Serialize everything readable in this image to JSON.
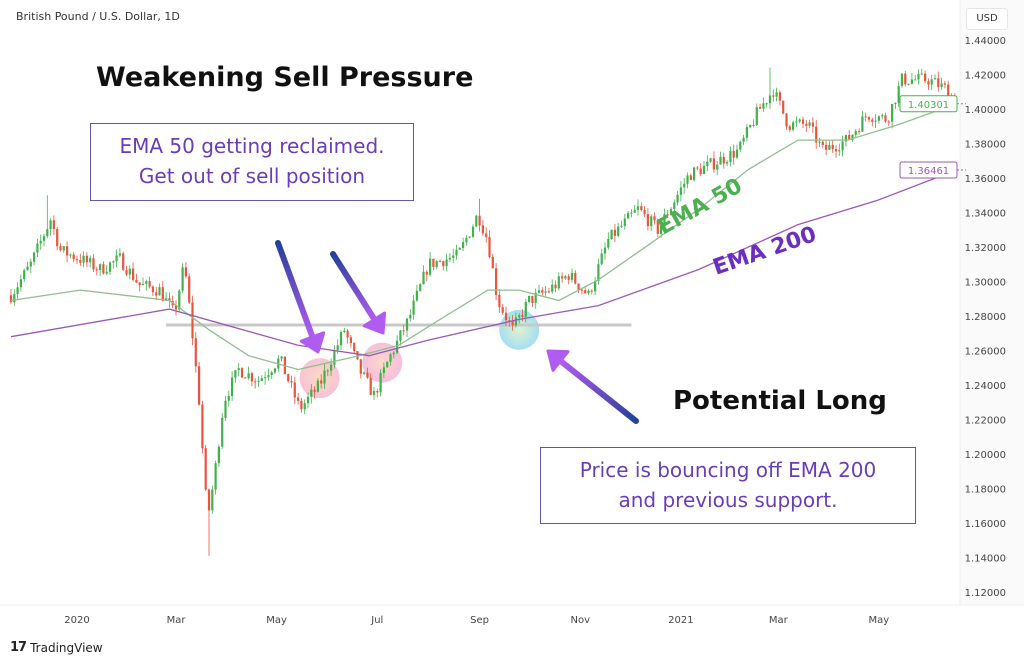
{
  "header": {
    "symbol": "British Pound / U.S. Dollar, 1D",
    "currency_button": "USD"
  },
  "footer": {
    "brand": "TradingView"
  },
  "annotations": {
    "title_left": "Weakening Sell Pressure",
    "box_left": [
      "EMA 50 getting reclaimed.",
      "Get out of sell position"
    ],
    "title_right": "Potential Long",
    "box_right": [
      "Price is bouncing off EMA 200",
      "and previous support."
    ],
    "ema50_label": "EMA 50",
    "ema200_label": "EMA 200",
    "colors": {
      "ema50_label": "#4caf50",
      "ema200_label": "#6a2fc0",
      "box_text": "#6a3db8",
      "arrow_start": "#24409a",
      "arrow_end": "#b45cf0",
      "support_line": "#c8c8c8"
    }
  },
  "chart_data": {
    "type": "candlestick",
    "title": "British Pound / U.S. Dollar, 1D",
    "ylabel": "USD",
    "ylim": [
      1.11,
      1.45
    ],
    "y_ticks": [
      "1.44000",
      "1.42000",
      "1.40000",
      "1.38000",
      "1.36000",
      "1.34000",
      "1.32000",
      "1.30000",
      "1.28000",
      "1.26000",
      "1.24000",
      "1.22000",
      "1.20000",
      "1.18000",
      "1.16000",
      "1.14000",
      "1.12000"
    ],
    "x_ticks": [
      {
        "date": "2020-01-01",
        "label": "2020"
      },
      {
        "date": "2020-03-01",
        "label": "Mar"
      },
      {
        "date": "2020-05-01",
        "label": "May"
      },
      {
        "date": "2020-07-01",
        "label": "Jul"
      },
      {
        "date": "2020-09-01",
        "label": "Sep"
      },
      {
        "date": "2020-11-01",
        "label": "Nov"
      },
      {
        "date": "2021-01-01",
        "label": "2021"
      },
      {
        "date": "2021-03-01",
        "label": "Mar"
      },
      {
        "date": "2021-05-01",
        "label": "May"
      }
    ],
    "colors": {
      "up": "#3fb24b",
      "down": "#e8553b",
      "ema50": "#8fbf8f",
      "ema200": "#9b59b6"
    },
    "price_path": [
      [
        "2019-11-22",
        1.292
      ],
      [
        "2019-12-04",
        1.31
      ],
      [
        "2019-12-16",
        1.336
      ],
      [
        "2019-12-22",
        1.318
      ],
      [
        "2020-01-03",
        1.313
      ],
      [
        "2020-01-15",
        1.307
      ],
      [
        "2020-01-27",
        1.313
      ],
      [
        "2020-02-08",
        1.298
      ],
      [
        "2020-02-20",
        1.295
      ],
      [
        "2020-02-29",
        1.281
      ],
      [
        "2020-03-06",
        1.31
      ],
      [
        "2020-03-10",
        1.278
      ],
      [
        "2020-03-15",
        1.231
      ],
      [
        "2020-03-20",
        1.162
      ],
      [
        "2020-03-24",
        1.185
      ],
      [
        "2020-03-30",
        1.231
      ],
      [
        "2020-04-08",
        1.249
      ],
      [
        "2020-04-20",
        1.243
      ],
      [
        "2020-05-03",
        1.255
      ],
      [
        "2020-05-15",
        1.226
      ],
      [
        "2020-05-27",
        1.24
      ],
      [
        "2020-06-11",
        1.272
      ],
      [
        "2020-06-20",
        1.249
      ],
      [
        "2020-06-29",
        1.234
      ],
      [
        "2020-07-08",
        1.255
      ],
      [
        "2020-07-20",
        1.278
      ],
      [
        "2020-08-01",
        1.31
      ],
      [
        "2020-08-19",
        1.315
      ],
      [
        "2020-08-31",
        1.339
      ],
      [
        "2020-09-06",
        1.324
      ],
      [
        "2020-09-12",
        1.289
      ],
      [
        "2020-09-21",
        1.272
      ],
      [
        "2020-10-01",
        1.289
      ],
      [
        "2020-10-13",
        1.295
      ],
      [
        "2020-10-25",
        1.304
      ],
      [
        "2020-11-06",
        1.292
      ],
      [
        "2020-11-18",
        1.324
      ],
      [
        "2020-12-06",
        1.342
      ],
      [
        "2020-12-18",
        1.33
      ],
      [
        "2021-01-06",
        1.362
      ],
      [
        "2021-01-24",
        1.37
      ],
      [
        "2021-02-05",
        1.376
      ],
      [
        "2021-02-17",
        1.399
      ],
      [
        "2021-02-26",
        1.411
      ],
      [
        "2021-03-07",
        1.391
      ],
      [
        "2021-03-19",
        1.391
      ],
      [
        "2021-03-28",
        1.376
      ],
      [
        "2021-04-12",
        1.382
      ],
      [
        "2021-04-24",
        1.397
      ],
      [
        "2021-05-06",
        1.394
      ],
      [
        "2021-05-15",
        1.417
      ],
      [
        "2021-05-31",
        1.417
      ],
      [
        "2021-06-12",
        1.411
      ],
      [
        "2021-06-17",
        1.401
      ]
    ],
    "extremes": {
      "high": [
        [
          "2019-12-13",
          1.35
        ],
        [
          "2020-09-01",
          1.348
        ],
        [
          "2021-02-24",
          1.424
        ]
      ],
      "low": [
        [
          "2020-03-20",
          1.141
        ]
      ]
    },
    "series": [
      {
        "name": "EMA 50",
        "last": "1.40301",
        "points": [
          [
            "2019-11-22",
            1.289
          ],
          [
            "2020-01-03",
            1.295
          ],
          [
            "2020-02-26",
            1.289
          ],
          [
            "2020-03-21",
            1.272
          ],
          [
            "2020-04-14",
            1.257
          ],
          [
            "2020-05-14",
            1.249
          ],
          [
            "2020-06-20",
            1.257
          ],
          [
            "2020-07-14",
            1.263
          ],
          [
            "2020-08-08",
            1.278
          ],
          [
            "2020-09-06",
            1.295
          ],
          [
            "2020-09-25",
            1.295
          ],
          [
            "2020-10-19",
            1.289
          ],
          [
            "2020-11-12",
            1.301
          ],
          [
            "2020-12-12",
            1.321
          ],
          [
            "2021-01-12",
            1.342
          ],
          [
            "2021-02-11",
            1.365
          ],
          [
            "2021-03-13",
            1.382
          ],
          [
            "2021-04-12",
            1.382
          ],
          [
            "2021-05-13",
            1.391
          ],
          [
            "2021-06-17",
            1.40301
          ]
        ]
      },
      {
        "name": "EMA 200",
        "last": "1.36461",
        "points": [
          [
            "2019-11-22",
            1.268
          ],
          [
            "2020-02-26",
            1.284
          ],
          [
            "2020-05-14",
            1.263
          ],
          [
            "2020-06-26",
            1.257
          ],
          [
            "2020-08-01",
            1.266
          ],
          [
            "2020-09-25",
            1.278
          ],
          [
            "2020-11-12",
            1.286
          ],
          [
            "2021-01-12",
            1.307
          ],
          [
            "2021-03-13",
            1.333
          ],
          [
            "2021-04-30",
            1.347
          ],
          [
            "2021-06-17",
            1.36461
          ]
        ]
      }
    ],
    "support_level": {
      "price": 1.2748,
      "from": "2020-02-24",
      "to": "2020-12-02"
    },
    "highlights": [
      {
        "date": "2020-05-27",
        "price": 1.244,
        "color": "#f7b3c4"
      },
      {
        "date": "2020-07-04",
        "price": 1.253,
        "color": "#f6a8cf"
      },
      {
        "date": "2020-09-25",
        "price": 1.272,
        "color": "#8fd8e6"
      }
    ],
    "grid": false
  }
}
